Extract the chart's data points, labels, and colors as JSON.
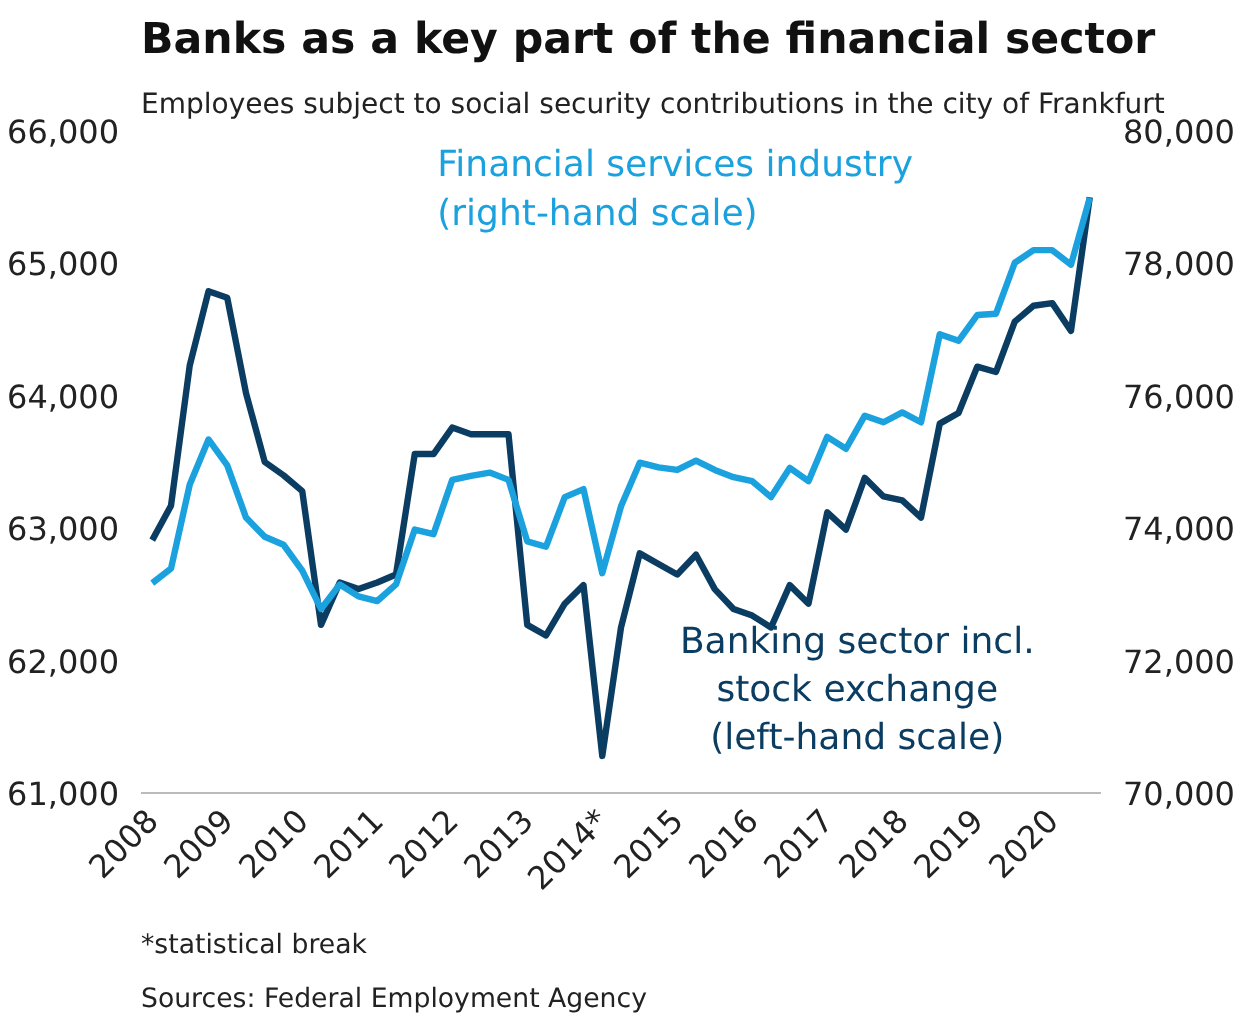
{
  "chart_data": {
    "type": "line",
    "title": "Banks as a key part of the financial sector",
    "subtitle": "Employees subject to social security contributions in the city of Frankfurt",
    "x": [
      2008.0,
      2008.25,
      2008.5,
      2008.75,
      2009.0,
      2009.25,
      2009.5,
      2009.75,
      2010.0,
      2010.25,
      2010.5,
      2010.75,
      2011.0,
      2011.25,
      2011.5,
      2011.75,
      2012.0,
      2012.25,
      2012.5,
      2012.75,
      2013.0,
      2013.25,
      2013.5,
      2013.75,
      2014.0,
      2014.25,
      2014.5,
      2014.75,
      2015.0,
      2015.25,
      2015.5,
      2015.75,
      2016.0,
      2016.25,
      2016.5,
      2016.75,
      2017.0,
      2017.25,
      2017.5,
      2017.75,
      2018.0,
      2018.25,
      2018.5,
      2018.75,
      2019.0,
      2019.25,
      2019.5,
      2019.75,
      2020.0,
      2020.25,
      2020.5
    ],
    "series": [
      {
        "name": "Banking sector incl. stock exchange (left-hand scale)",
        "color": "#0b3d63",
        "values": [
          62910,
          63170,
          64230,
          64790,
          64740,
          64020,
          63500,
          63400,
          63280,
          62270,
          62590,
          62540,
          62590,
          62650,
          63560,
          63560,
          63760,
          63710,
          63710,
          63710,
          62270,
          62190,
          62430,
          62570,
          61280,
          62250,
          62810,
          62730,
          62650,
          62800,
          62540,
          62390,
          62340,
          62250,
          62570,
          62430,
          63120,
          62990,
          63380,
          63240,
          63210,
          63080,
          63790,
          63870,
          64220,
          64180,
          64560,
          64680,
          64700,
          64490,
          65500
        ]
      },
      {
        "name": "Financial services industry (right-hand scale)",
        "color": "#1ba1de",
        "axis": "y2",
        "values": [
          73170,
          73390,
          74660,
          75340,
          74950,
          74160,
          73870,
          73750,
          73360,
          72780,
          73150,
          72970,
          72900,
          73150,
          73980,
          73910,
          74730,
          74790,
          74840,
          74730,
          73800,
          73720,
          74470,
          74590,
          73320,
          74330,
          74990,
          74920,
          74880,
          75020,
          74880,
          74770,
          74710,
          74470,
          74910,
          74710,
          75380,
          75200,
          75700,
          75600,
          75750,
          75600,
          76930,
          76830,
          77220,
          77240,
          78010,
          78200,
          78200,
          77980,
          78990
        ]
      }
    ],
    "xlim": [
      2007.85,
      2020.65
    ],
    "xticks": [
      2008,
      2009,
      2010,
      2011,
      2012,
      2013,
      {
        "value": 2014,
        "label": "2014*"
      },
      2015,
      2016,
      2017,
      2018,
      2019,
      2020
    ],
    "ylim": [
      61000,
      66000
    ],
    "yticks": [
      {
        "value": 61000,
        "label": "61,000"
      },
      {
        "value": 62000,
        "label": "62,000"
      },
      {
        "value": 63000,
        "label": "63,000"
      },
      {
        "value": 64000,
        "label": "64,000"
      },
      {
        "value": 65000,
        "label": "65,000"
      },
      {
        "value": 66000,
        "label": "66,000"
      }
    ],
    "y2lim": [
      70000,
      80000
    ],
    "y2ticks": [
      {
        "value": 70000,
        "label": "70,000"
      },
      {
        "value": 72000,
        "label": "72,000"
      },
      {
        "value": 74000,
        "label": "74,000"
      },
      {
        "value": 76000,
        "label": "76,000"
      },
      {
        "value": 78000,
        "label": "78,000"
      },
      {
        "value": 80000,
        "label": "80,000"
      }
    ],
    "grid": false,
    "legend": false,
    "annotations": [
      "*statistical break",
      "Sources: Federal Employment Agency"
    ]
  }
}
